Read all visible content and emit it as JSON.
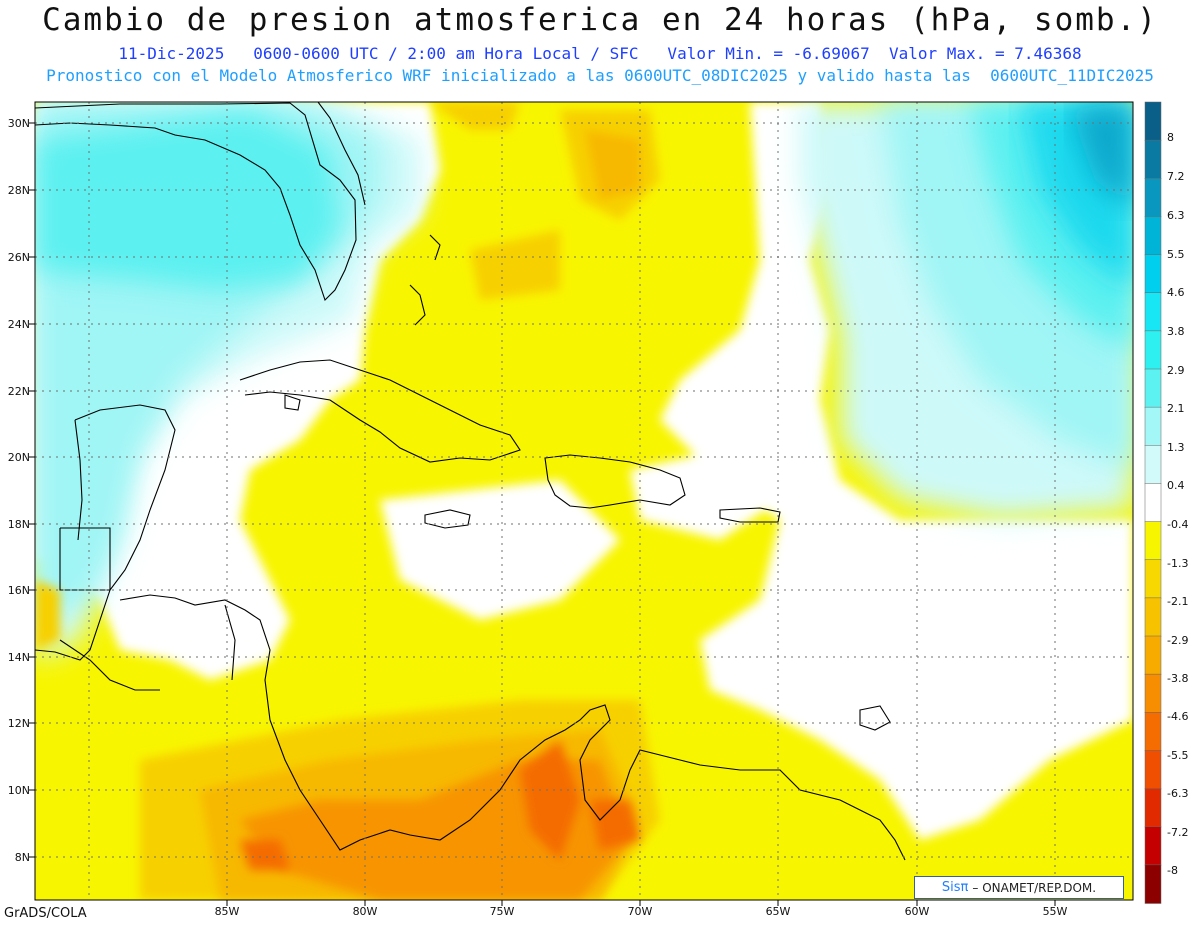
{
  "header": {
    "title": "Cambio de presion atmosferica en 24 horas (hPa, somb.)",
    "subtitle_line1": "11-Dic-2025   0600-0600 UTC / 2:00 am Hora Local / SFC   Valor Min. = -6.69067  Valor Max. = 7.46368",
    "subtitle_line2": "Pronostico con el Modelo Atmosferico WRF inicializado a las 0600UTC_08DIC2025 y valido hasta las  0600UTC_11DIC2025"
  },
  "axes": {
    "latitude_labels": [
      "30N",
      "28N",
      "26N",
      "24N",
      "22N",
      "20N",
      "18N",
      "16N",
      "14N",
      "12N",
      "10N",
      "8N"
    ],
    "longitude_labels": [
      "85W",
      "80W",
      "75W",
      "70W",
      "65W",
      "60W",
      "55W"
    ]
  },
  "colorbar": {
    "levels": [
      "8",
      "7.2",
      "6.3",
      "5.5",
      "4.6",
      "3.8",
      "2.9",
      "2.1",
      "1.3",
      "0.4",
      "-0.4",
      "-1.3",
      "-2.1",
      "-2.9",
      "-3.8",
      "-4.6",
      "-5.5",
      "-6.3",
      "-7.2",
      "-8"
    ],
    "colors": [
      "#0a5f88",
      "#0b7aa3",
      "#0a97bf",
      "#00b4d8",
      "#00cfee",
      "#19e6f5",
      "#2ef0f0",
      "#5cf2f2",
      "#a4f7f7",
      "#d2fafa",
      "#ffffff",
      "#f8f500",
      "#f7d800",
      "#f7c300",
      "#f7aa00",
      "#f78d00",
      "#f56c00",
      "#f04e00",
      "#e12a00",
      "#c40000",
      "#8c0000"
    ]
  },
  "footer": {
    "software": "GrADS/COLA",
    "credit_logo": "Sisπ",
    "credit_text": "– ONAMET/REP.DOM."
  }
}
